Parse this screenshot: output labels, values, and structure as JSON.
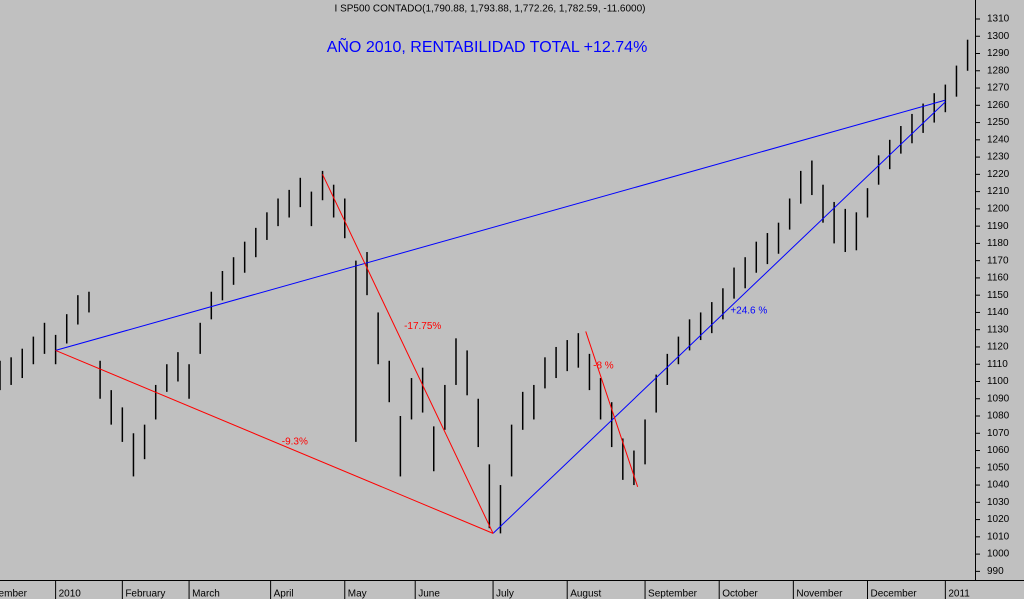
{
  "chart_data": {
    "type": "range-bar",
    "header": "I SP500 CONTADO(1,790.88, 1,793.88, 1,772.26, 1,782.59, -11.6000)",
    "title": "AÑO 2010, RENTABILIDAD TOTAL +12.74%",
    "color": "#000000",
    "x": [
      0,
      3,
      6,
      9,
      12,
      15,
      18,
      21,
      24,
      27,
      30,
      33,
      36,
      39,
      42,
      45,
      48,
      51,
      54,
      57,
      60,
      63,
      66,
      69,
      72,
      75,
      78,
      81,
      84,
      87,
      90,
      93,
      96,
      99,
      102,
      105,
      108,
      111,
      114,
      117,
      120,
      123,
      126,
      129,
      132,
      135,
      138,
      141,
      144,
      147,
      150,
      153,
      156,
      159,
      162,
      165,
      168,
      171,
      174,
      177,
      180,
      183,
      186,
      189,
      192,
      195,
      198,
      201,
      204,
      207,
      210,
      213,
      216,
      219,
      222,
      225,
      228,
      231,
      234,
      237,
      240,
      243,
      246,
      249,
      252,
      255,
      258,
      261
    ],
    "low": [
      1095,
      1098,
      1102,
      1110,
      1116,
      1110,
      1122,
      1133,
      1140,
      1090,
      1075,
      1065,
      1045,
      1055,
      1078,
      1094,
      1100,
      1090,
      1116,
      1136,
      1147,
      1156,
      1163,
      1172,
      1182,
      1190,
      1195,
      1201,
      1190,
      1205,
      1195,
      1183,
      1065,
      1150,
      1110,
      1088,
      1045,
      1078,
      1082,
      1048,
      1072,
      1098,
      1092,
      1062,
      1015,
      1012,
      1045,
      1072,
      1078,
      1096,
      1102,
      1106,
      1108,
      1095,
      1078,
      1062,
      1043,
      1040,
      1052,
      1082,
      1098,
      1110,
      1118,
      1124,
      1128,
      1136,
      1148,
      1154,
      1163,
      1168,
      1174,
      1188,
      1203,
      1208,
      1192,
      1180,
      1175,
      1176,
      1195,
      1214,
      1223,
      1232,
      1238,
      1244,
      1250,
      1256,
      1265,
      1280
    ],
    "high": [
      1112,
      1114,
      1119,
      1126,
      1134,
      1127,
      1139,
      1150,
      1152,
      1112,
      1095,
      1085,
      1070,
      1075,
      1098,
      1110,
      1117,
      1110,
      1134,
      1152,
      1164,
      1172,
      1181,
      1189,
      1198,
      1206,
      1211,
      1218,
      1210,
      1222,
      1214,
      1206,
      1170,
      1175,
      1140,
      1112,
      1080,
      1102,
      1108,
      1074,
      1098,
      1125,
      1118,
      1090,
      1052,
      1040,
      1075,
      1094,
      1098,
      1114,
      1120,
      1124,
      1128,
      1116,
      1102,
      1088,
      1067,
      1060,
      1078,
      1104,
      1116,
      1126,
      1136,
      1140,
      1146,
      1154,
      1166,
      1172,
      1181,
      1186,
      1192,
      1206,
      1222,
      1228,
      1214,
      1204,
      1200,
      1198,
      1212,
      1231,
      1240,
      1248,
      1255,
      1261,
      1267,
      1272,
      1283,
      1298
    ],
    "xlim": [
      0,
      263
    ],
    "xticks": [
      {
        "value": -6,
        "label": "December"
      },
      {
        "value": 15,
        "label": "2010"
      },
      {
        "value": 33,
        "label": "February"
      },
      {
        "value": 51,
        "label": "March"
      },
      {
        "value": 73,
        "label": "April"
      },
      {
        "value": 93,
        "label": "May"
      },
      {
        "value": 112,
        "label": "June"
      },
      {
        "value": 133,
        "label": "July"
      },
      {
        "value": 153,
        "label": "August"
      },
      {
        "value": 174,
        "label": "September"
      },
      {
        "value": 194,
        "label": "October"
      },
      {
        "value": 214,
        "label": "November"
      },
      {
        "value": 234,
        "label": "December"
      },
      {
        "value": 255,
        "label": "2011"
      }
    ],
    "ylim": [
      985,
      1321
    ],
    "yticks": [
      990,
      1000,
      1010,
      1020,
      1030,
      1040,
      1050,
      1060,
      1070,
      1080,
      1090,
      1100,
      1110,
      1120,
      1130,
      1140,
      1150,
      1160,
      1170,
      1180,
      1190,
      1200,
      1210,
      1220,
      1230,
      1240,
      1250,
      1260,
      1270,
      1280,
      1290,
      1300,
      1310
    ],
    "trend_lines": [
      {
        "color": "#0000ff",
        "x": [
          15,
          255
        ],
        "y": [
          1118,
          1263
        ]
      },
      {
        "color": "#0000ff",
        "x": [
          133,
          255
        ],
        "y": [
          1012,
          1262
        ]
      },
      {
        "color": "#ff0000",
        "x": [
          15,
          133
        ],
        "y": [
          1118,
          1012
        ]
      },
      {
        "color": "#ff0000",
        "x": [
          87,
          133
        ],
        "y": [
          1220,
          1012
        ]
      },
      {
        "color": "#ff0000",
        "x": [
          158,
          172
        ],
        "y": [
          1129,
          1039
        ]
      }
    ],
    "annotations": [
      {
        "text": "-9.3%",
        "x": 76,
        "y": 1065,
        "color": "#ff0000"
      },
      {
        "text": "-17.75%",
        "x": 109,
        "y": 1132,
        "color": "#ff0000"
      },
      {
        "text": "-8 %",
        "x": 160,
        "y": 1109,
        "color": "#ff0000"
      },
      {
        "text": "+24.6 %",
        "x": 197,
        "y": 1141,
        "color": "#0000ff"
      }
    ]
  }
}
